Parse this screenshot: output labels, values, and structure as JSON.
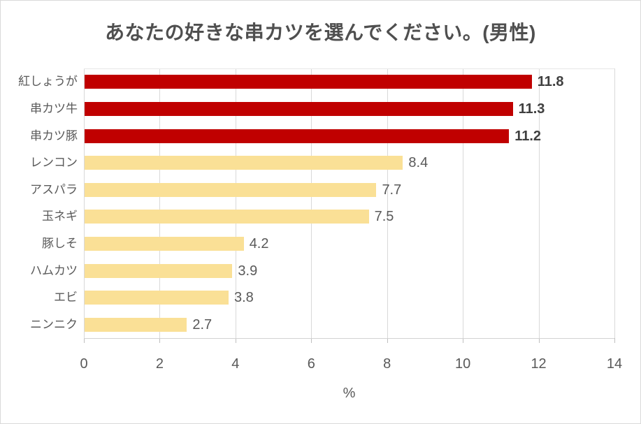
{
  "title": "あなたの好きな串カツを選んでください。(男性)",
  "colors": {
    "highlight_bar": "#c00000",
    "normal_bar": "#fae096",
    "title_text": "#4f4f4f",
    "axis_text": "#595959",
    "value_text_highlight": "#3f3f3f",
    "value_text_normal": "#595959",
    "gridline": "#d9d9d9"
  },
  "chart_data": {
    "type": "bar",
    "orientation": "horizontal",
    "title": "あなたの好きな串カツを選んでください。(男性)",
    "categories": [
      "紅しょうが",
      "串カツ牛",
      "串カツ豚",
      "レンコン",
      "アスパラ",
      "玉ネギ",
      "豚しそ",
      "ハムカツ",
      "エビ",
      "ニンニク"
    ],
    "values": [
      11.8,
      11.3,
      11.2,
      8.4,
      7.7,
      7.5,
      4.2,
      3.9,
      3.8,
      2.7
    ],
    "highlighted": [
      true,
      true,
      true,
      false,
      false,
      false,
      false,
      false,
      false,
      false
    ],
    "xlabel": "%",
    "xlim": [
      0,
      14
    ],
    "xticks": [
      0,
      2,
      4,
      6,
      8,
      10,
      12,
      14
    ],
    "grid": "vertical-only",
    "legend": "none",
    "value_decimals": 1
  }
}
